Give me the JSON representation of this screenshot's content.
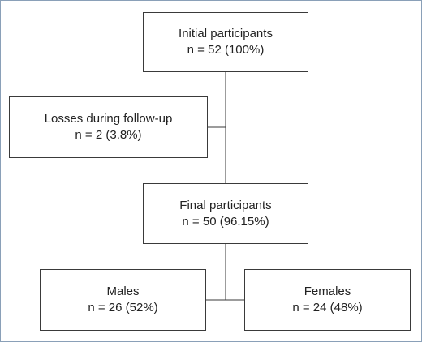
{
  "diagram": {
    "nodes": {
      "initial": {
        "label": "Initial participants",
        "value": "n = 52 (100%)"
      },
      "losses": {
        "label": "Losses during follow-up",
        "value": "n = 2 (3.8%)"
      },
      "final": {
        "label": "Final participants",
        "value": "n = 50 (96.15%)"
      },
      "males": {
        "label": "Males",
        "value": "n = 26 (52%)"
      },
      "females": {
        "label": "Females",
        "value": "n = 24 (48%)"
      }
    },
    "edges": [
      {
        "from": "initial",
        "to": "final"
      },
      {
        "from": "initial",
        "to": "losses"
      },
      {
        "from": "final",
        "to": "males"
      },
      {
        "from": "final",
        "to": "females"
      }
    ],
    "colors": {
      "border": "#3a3a3a",
      "frame": "#8aa0b8",
      "text": "#222222"
    }
  }
}
